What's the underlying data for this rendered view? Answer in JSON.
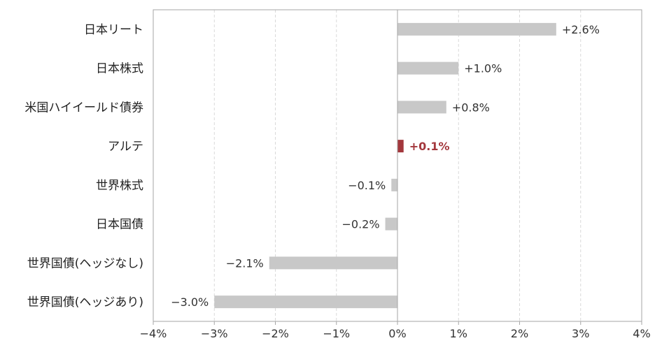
{
  "chart_data": {
    "type": "bar",
    "orientation": "horizontal",
    "categories": [
      "日本リート",
      "日本株式",
      "米国ハイイールド債券",
      "アルテ",
      "世界株式",
      "日本国債",
      "世界国債(ヘッジなし)",
      "世界国債(ヘッジあり)"
    ],
    "values": [
      2.6,
      1.0,
      0.8,
      0.1,
      -0.1,
      -0.2,
      -2.1,
      -3.0
    ],
    "data_labels": [
      "+2.6%",
      "+1.0%",
      "+0.8%",
      "+0.1%",
      "−0.1%",
      "−0.2%",
      "−2.1%",
      "−3.0%"
    ],
    "highlight_index": 3,
    "xlim": [
      -4,
      4
    ],
    "xticks": [
      "−4%",
      "−3%",
      "−2%",
      "−1%",
      "0%",
      "1%",
      "2%",
      "3%",
      "4%"
    ],
    "grid": "vertical dashed",
    "legend": "none",
    "title": "",
    "xlabel": "",
    "ylabel": "",
    "colors": {
      "bar": "#c8c8c8",
      "highlight_bar": "#a3373c",
      "highlight_label": "#a3373c",
      "grid": "#d9d9d9",
      "axis": "#a6a6a6"
    }
  }
}
